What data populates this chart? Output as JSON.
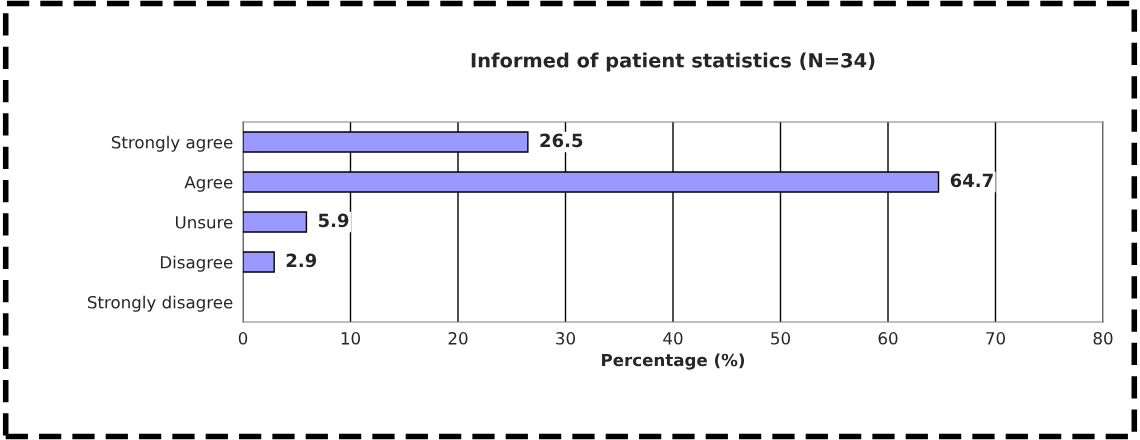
{
  "chart_data": {
    "type": "bar",
    "orientation": "horizontal",
    "title": "Informed of patient statistics (N=34)",
    "xlabel": "Percentage (%)",
    "categories": [
      "Strongly agree",
      "Agree",
      "Unsure",
      "Disagree",
      "Strongly disagree"
    ],
    "values": [
      26.5,
      64.7,
      5.9,
      2.9,
      null
    ],
    "color": "#9999ff",
    "value_labels": [
      "26.5",
      "64.7",
      "5.9",
      "2.9",
      null
    ],
    "xlim": [
      0,
      80
    ],
    "xticks": [
      0,
      10,
      20,
      30,
      40,
      50,
      60,
      70,
      80
    ],
    "grid": "x"
  }
}
